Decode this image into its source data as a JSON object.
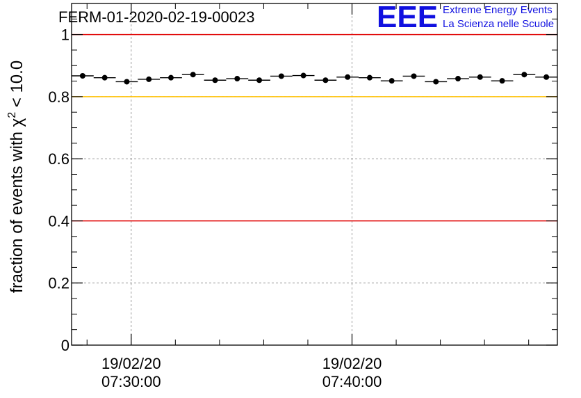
{
  "title": "FERM-01-2020-02-19-00023",
  "logo": {
    "mark": "EEE",
    "line1": "Extreme Energy Events",
    "line2": "La Scienza nelle Scuole",
    "color": "#1010e0"
  },
  "colors": {
    "red_line": "#e00000",
    "yellow_line": "#ffc000",
    "points": "#000000",
    "grid": "#a0a0a0"
  },
  "chart_data": {
    "type": "scatter",
    "title": "FERM-01-2020-02-19-00023",
    "ylabel_text": "fraction of events with χ",
    "ylabel_sup": "2",
    "ylabel_tail": " < 10.0",
    "ylim": [
      0,
      1.1
    ],
    "yticks": [
      {
        "value": 0,
        "label": "0"
      },
      {
        "value": 0.2,
        "label": "0.2"
      },
      {
        "value": 0.4,
        "label": "0.4"
      },
      {
        "value": 0.6,
        "label": "0.6"
      },
      {
        "value": 0.8,
        "label": "0.8"
      },
      {
        "value": 1,
        "label": "1"
      }
    ],
    "xlim_minutes": [
      0,
      22
    ],
    "xticks": [
      {
        "minute": 2.7,
        "date": "19/02/20",
        "time": "07:30:00"
      },
      {
        "minute": 12.7,
        "date": "19/02/20",
        "time": "07:40:00"
      }
    ],
    "reference_lines": [
      {
        "value": 1.0,
        "color": "#e00000"
      },
      {
        "value": 0.8,
        "color": "#ffc000"
      },
      {
        "value": 0.4,
        "color": "#e00000"
      }
    ],
    "points": [
      0.867,
      0.861,
      0.848,
      0.856,
      0.861,
      0.871,
      0.853,
      0.858,
      0.853,
      0.866,
      0.868,
      0.853,
      0.863,
      0.861,
      0.851,
      0.866,
      0.848,
      0.858,
      0.863,
      0.851,
      0.871,
      0.863
    ]
  }
}
